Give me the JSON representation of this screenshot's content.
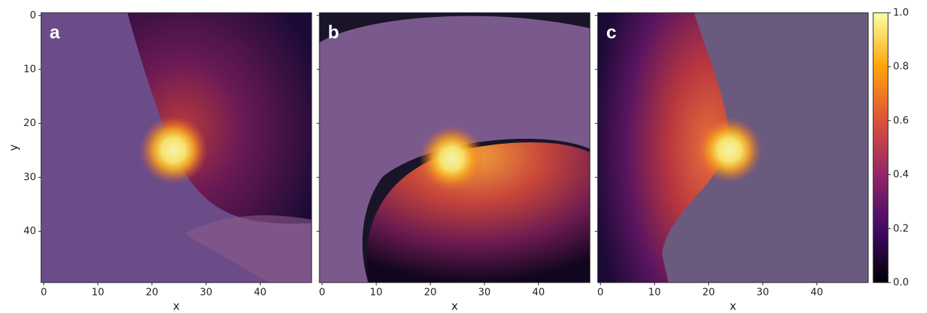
{
  "chart_data": [
    {
      "type": "heatmap",
      "label": "a",
      "xlabel": "x",
      "ylabel": "y",
      "xlim": [
        -0.5,
        49.5
      ],
      "ylim": [
        49.5,
        -0.5
      ],
      "xticks": [
        0,
        10,
        20,
        30,
        40
      ],
      "yticks": [
        0,
        10,
        20,
        30,
        40
      ]
    },
    {
      "type": "heatmap",
      "label": "b",
      "xlabel": "x",
      "xlim": [
        -0.5,
        49.5
      ],
      "ylim": [
        49.5,
        -0.5
      ],
      "xticks": [
        0,
        10,
        20,
        30,
        40
      ],
      "yticks": [
        0,
        10,
        20,
        30,
        40
      ]
    },
    {
      "type": "heatmap",
      "label": "c",
      "xlabel": "x",
      "xlim": [
        -0.5,
        49.5
      ],
      "ylim": [
        49.5,
        -0.5
      ],
      "xticks": [
        0,
        10,
        20,
        30,
        40
      ],
      "yticks": [
        0,
        10,
        20,
        30,
        40
      ],
      "colorbar": {
        "lim": [
          0,
          1
        ],
        "ticks": [
          {
            "value": 0,
            "label": "0.0"
          },
          0.2,
          0.4,
          0.6,
          0.8,
          {
            "value": 1,
            "label": "1.0"
          }
        ]
      }
    }
  ]
}
